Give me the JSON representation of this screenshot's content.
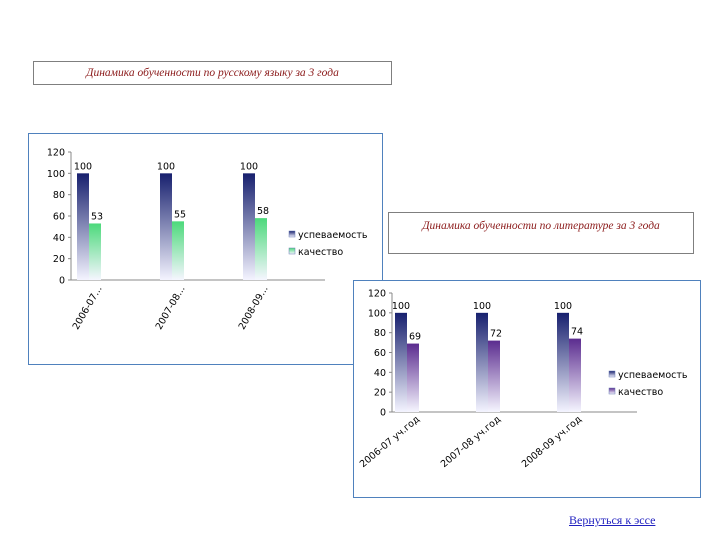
{
  "titles": {
    "chart1": "Динамика обученности по русскому языку за 3 года",
    "chart2": "Динамика обученности по литературе за 3 года"
  },
  "back_link": "Вернуться к эссе",
  "colors": {
    "navy": "#17206e",
    "green": "#4cd97b",
    "purple": "#5b2c8f",
    "frame": "#4f81bd",
    "title_text": "#8b1a1a",
    "link": "#1f1fbf"
  },
  "chart_data": [
    {
      "type": "bar",
      "title": "Динамика обученности по русскому языку за 3 года",
      "categories": [
        "2006-07...",
        "2007-08...",
        "2008-09..."
      ],
      "series": [
        {
          "name": "успеваемость",
          "values": [
            100,
            100,
            100
          ]
        },
        {
          "name": "качество",
          "values": [
            53,
            55,
            58
          ]
        }
      ],
      "ylim": [
        0,
        120
      ],
      "yticks": [
        0,
        20,
        40,
        60,
        80,
        100,
        120
      ],
      "xlabel": "",
      "ylabel": "",
      "grid": false,
      "legend": "right"
    },
    {
      "type": "bar",
      "title": "Динамика обученности по литературе за 3 года",
      "categories": [
        "2006-07 уч.год",
        "2007-08 уч.год",
        "2008-09 уч.год"
      ],
      "series": [
        {
          "name": "успеваемость",
          "values": [
            100,
            100,
            100
          ]
        },
        {
          "name": "качество",
          "values": [
            69,
            72,
            74
          ]
        }
      ],
      "ylim": [
        0,
        120
      ],
      "yticks": [
        0,
        20,
        40,
        60,
        80,
        100,
        120
      ],
      "xlabel": "",
      "ylabel": "",
      "grid": false,
      "legend": "right"
    }
  ]
}
